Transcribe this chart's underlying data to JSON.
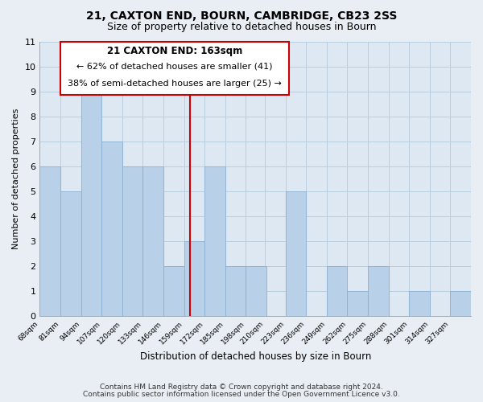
{
  "title": "21, CAXTON END, BOURN, CAMBRIDGE, CB23 2SS",
  "subtitle": "Size of property relative to detached houses in Bourn",
  "xlabel": "Distribution of detached houses by size in Bourn",
  "ylabel": "Number of detached properties",
  "bin_edges": [
    68,
    81,
    94,
    107,
    120,
    133,
    146,
    159,
    172,
    185,
    198,
    210,
    223,
    236,
    249,
    262,
    275,
    288,
    301,
    314,
    327,
    340
  ],
  "bin_labels": [
    "68sqm",
    "81sqm",
    "94sqm",
    "107sqm",
    "120sqm",
    "133sqm",
    "146sqm",
    "159sqm",
    "172sqm",
    "185sqm",
    "198sqm",
    "210sqm",
    "223sqm",
    "236sqm",
    "249sqm",
    "262sqm",
    "275sqm",
    "288sqm",
    "301sqm",
    "314sqm",
    "327sqm"
  ],
  "bar_heights": [
    6,
    5,
    9,
    7,
    6,
    6,
    2,
    3,
    6,
    2,
    2,
    0,
    5,
    0,
    2,
    1,
    2,
    0,
    1,
    0,
    1
  ],
  "bar_color": "#b8d0e8",
  "bar_edge_color": "#8ab0d0",
  "marker_value": 163,
  "marker_line_color": "#cc0000",
  "ylim": [
    0,
    11
  ],
  "yticks": [
    0,
    1,
    2,
    3,
    4,
    5,
    6,
    7,
    8,
    9,
    10,
    11
  ],
  "annotation_title": "21 CAXTON END: 163sqm",
  "annotation_line1": "← 62% of detached houses are smaller (41)",
  "annotation_line2": "38% of semi-detached houses are larger (25) →",
  "footer_line1": "Contains HM Land Registry data © Crown copyright and database right 2024.",
  "footer_line2": "Contains public sector information licensed under the Open Government Licence v3.0.",
  "background_color": "#e8eef4",
  "plot_background_color": "#dde8f2",
  "grid_color": "#b8cfe0",
  "annotation_box_edge": "#cc0000",
  "title_fontsize": 10,
  "subtitle_fontsize": 9
}
